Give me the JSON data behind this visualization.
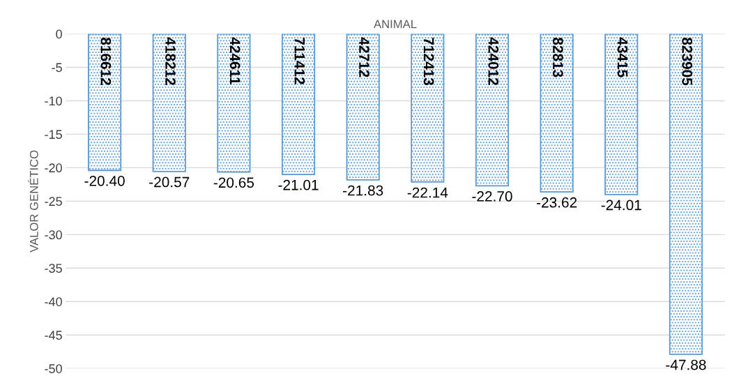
{
  "chart_data": {
    "type": "bar",
    "xlabel": "ANIMAL",
    "ylabel": "VALOR GENÉTICO",
    "categories": [
      "816612",
      "418212",
      "424611",
      "711412",
      "42712",
      "712413",
      "424012",
      "82813",
      "43415",
      "823905"
    ],
    "values": [
      -20.4,
      -20.57,
      -20.65,
      -21.01,
      -21.83,
      -22.14,
      -22.7,
      -23.62,
      -24.01,
      -47.88
    ],
    "value_labels": [
      "-20.40",
      "-20.57",
      "-20.65",
      "-21.01",
      "-21.83",
      "-22.14",
      "-22.70",
      "-23.62",
      "-24.01",
      "-47.88"
    ],
    "color": "#5b9bd5",
    "ylim": [
      -50,
      0
    ],
    "yticks": [
      0,
      -5,
      -10,
      -15,
      -20,
      -25,
      -30,
      -35,
      -40,
      -45,
      -50
    ],
    "grid": "y"
  }
}
